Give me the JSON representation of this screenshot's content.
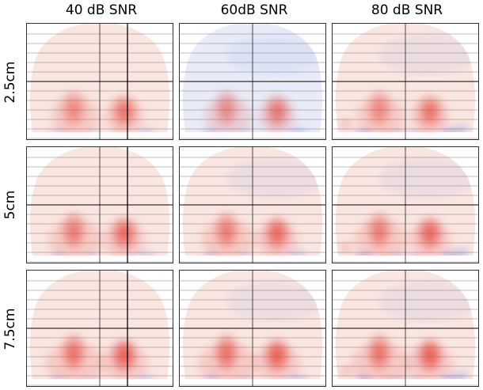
{
  "columns": [
    {
      "label": "40 dB SNR"
    },
    {
      "label": "60dB SNR"
    },
    {
      "label": "80 dB SNR"
    }
  ],
  "rows": [
    {
      "label": "2.5cm"
    },
    {
      "label": "5cm"
    },
    {
      "label": "7.5cm"
    }
  ],
  "colors": {
    "positive": "#e8453c",
    "negative": "#5b73e0",
    "background_warm": "#fae6e1",
    "background_cool": "#e8ecf8",
    "grid": "#333333"
  }
}
